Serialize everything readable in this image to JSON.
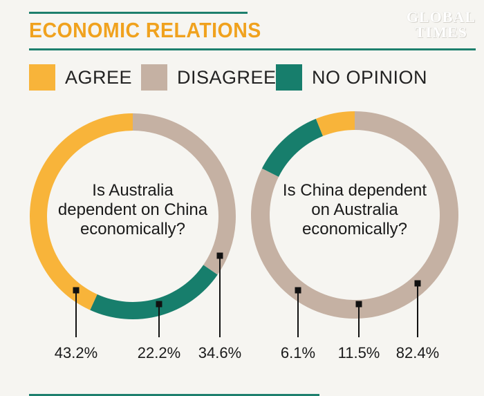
{
  "header": {
    "title": "ECONOMIC RELATIONS",
    "logo_line1": "GLOBAL",
    "logo_line2": "TIMES"
  },
  "legend": [
    {
      "label": "AGREE",
      "color": "#f8b43a"
    },
    {
      "label": "DISAGREE",
      "color": "#c5b1a3"
    },
    {
      "label": "NO OPINION",
      "color": "#177e6c"
    }
  ],
  "chart_data": [
    {
      "type": "pie",
      "question_lines": [
        "Is Australia",
        "dependent on China",
        "economically?"
      ],
      "categories": [
        "AGREE",
        "NO OPINION",
        "DISAGREE"
      ],
      "values": [
        43.2,
        22.2,
        34.6
      ],
      "labels": [
        "43.2%",
        "22.2%",
        "34.6%"
      ],
      "colors": [
        "#f8b43a",
        "#177e6c",
        "#c5b1a3"
      ]
    },
    {
      "type": "pie",
      "question_lines": [
        "Is China dependent",
        "on Australia",
        "economically?"
      ],
      "categories": [
        "AGREE",
        "NO OPINION",
        "DISAGREE"
      ],
      "values": [
        6.1,
        11.5,
        82.4
      ],
      "labels": [
        "6.1%",
        "11.5%",
        "82.4%"
      ],
      "colors": [
        "#f8b43a",
        "#177e6c",
        "#c5b1a3"
      ]
    }
  ]
}
